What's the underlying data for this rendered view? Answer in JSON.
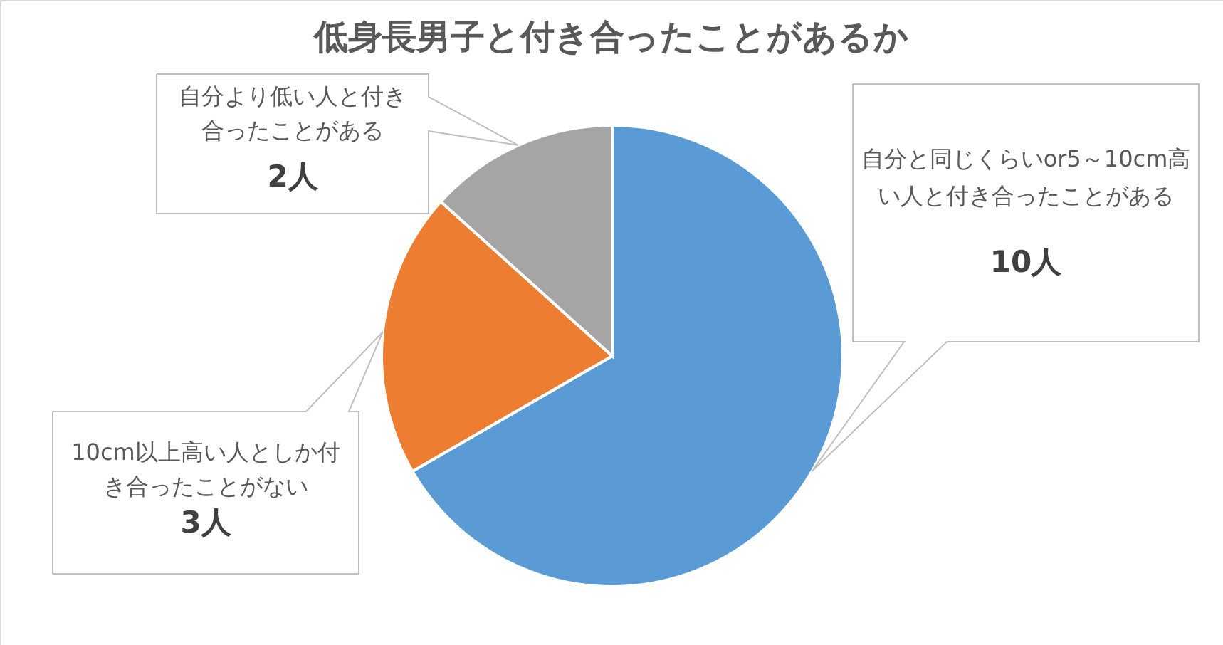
{
  "chart_data": {
    "type": "pie",
    "title": "低身長男子と付き合ったことがあるか",
    "categories": [
      "自分と同じくらいor5～10cm高い人と付き合ったことがある",
      "10cm以上高い人としか付き合ったことがない",
      "自分より低い人と付き合ったことがある"
    ],
    "values": [
      10,
      3,
      2
    ],
    "colors": [
      "#5b9bd5",
      "#ed7d31",
      "#a5a5a5"
    ],
    "value_labels": [
      "10人",
      "3人",
      "2人"
    ]
  }
}
